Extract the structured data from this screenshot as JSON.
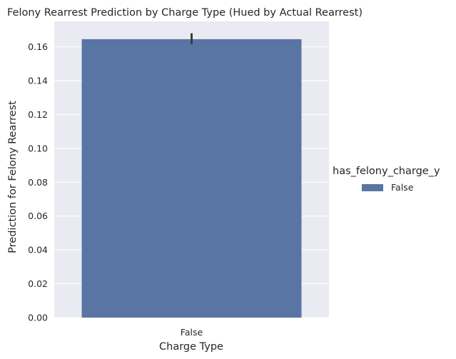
{
  "chart_data": {
    "type": "bar",
    "title": "Felony Rearrest Prediction by Charge Type (Hued by Actual Rearrest)",
    "xlabel": "Charge Type",
    "ylabel": "Prediction for Felony Rearrest",
    "categories": [
      "False"
    ],
    "series": [
      {
        "name": "False",
        "values": [
          0.1645
        ],
        "error_low": [
          0.1615
        ],
        "error_high": [
          0.168
        ]
      }
    ],
    "ylim": [
      0,
      0.175
    ],
    "yticks": [
      "0.00",
      "0.02",
      "0.04",
      "0.06",
      "0.08",
      "0.10",
      "0.12",
      "0.14",
      "0.16"
    ],
    "ytick_values": [
      0,
      0.02,
      0.04,
      0.06,
      0.08,
      0.1,
      0.12,
      0.14,
      0.16
    ],
    "grid": true,
    "legend": {
      "title": "has_felony_charge_y",
      "placement": "right",
      "entries": [
        "False"
      ]
    },
    "colors": {
      "bar": "#5875a4",
      "background": "#eaeaf2",
      "grid": "#ffffff",
      "error_bar": "#3d3d3d"
    }
  }
}
